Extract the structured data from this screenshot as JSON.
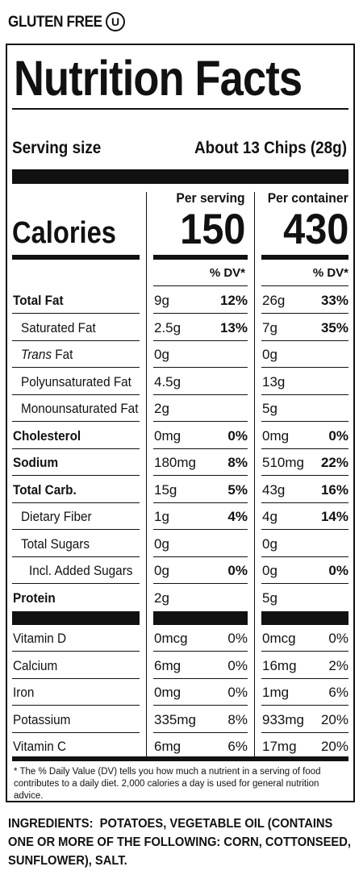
{
  "badges": {
    "gluten_free": "GLUTEN FREE",
    "kosher": "U"
  },
  "title": "Nutrition Facts",
  "serving": {
    "label": "Serving size",
    "value": "About 13 Chips (28g)"
  },
  "columns": {
    "per_serving": "Per serving",
    "per_container": "Per container"
  },
  "calories": {
    "label": "Calories",
    "per_serving": "150",
    "per_container": "430"
  },
  "dv_header": "% DV*",
  "nutrients": [
    {
      "name": "Total Fat",
      "bold": true,
      "indent": 0,
      "s_amt": "9g",
      "s_dv": "12%",
      "c_amt": "26g",
      "c_dv": "33%"
    },
    {
      "name": "Saturated Fat",
      "bold": false,
      "indent": 1,
      "s_amt": "2.5g",
      "s_dv": "13%",
      "c_amt": "7g",
      "c_dv": "35%"
    },
    {
      "name": "Trans Fat",
      "bold": false,
      "indent": 1,
      "italic_prefix": "Trans",
      "rest": " Fat",
      "s_amt": "0g",
      "s_dv": "",
      "c_amt": "0g",
      "c_dv": ""
    },
    {
      "name": "Polyunsaturated Fat",
      "bold": false,
      "indent": 1,
      "s_amt": "4.5g",
      "s_dv": "",
      "c_amt": "13g",
      "c_dv": ""
    },
    {
      "name": "Monounsaturated Fat",
      "bold": false,
      "indent": 1,
      "s_amt": "2g",
      "s_dv": "",
      "c_amt": "5g",
      "c_dv": ""
    },
    {
      "name": "Cholesterol",
      "bold": true,
      "indent": 0,
      "s_amt": "0mg",
      "s_dv": "0%",
      "c_amt": "0mg",
      "c_dv": "0%"
    },
    {
      "name": "Sodium",
      "bold": true,
      "indent": 0,
      "s_amt": "180mg",
      "s_dv": "8%",
      "c_amt": "510mg",
      "c_dv": "22%"
    },
    {
      "name": "Total Carb.",
      "bold": true,
      "indent": 0,
      "s_amt": "15g",
      "s_dv": "5%",
      "c_amt": "43g",
      "c_dv": "16%"
    },
    {
      "name": "Dietary Fiber",
      "bold": false,
      "indent": 1,
      "s_amt": "1g",
      "s_dv": "4%",
      "c_amt": "4g",
      "c_dv": "14%"
    },
    {
      "name": "Total Sugars",
      "bold": false,
      "indent": 1,
      "s_amt": "0g",
      "s_dv": "",
      "c_amt": "0g",
      "c_dv": ""
    },
    {
      "name": "Incl. Added Sugars",
      "bold": false,
      "indent": 2,
      "s_amt": "0g",
      "s_dv": "0%",
      "c_amt": "0g",
      "c_dv": "0%"
    },
    {
      "name": "Protein",
      "bold": true,
      "indent": 0,
      "s_amt": "2g",
      "s_dv": "",
      "c_amt": "5g",
      "c_dv": ""
    }
  ],
  "vitamins": [
    {
      "name": "Vitamin D",
      "s_amt": "0mcg",
      "s_dv": "0%",
      "c_amt": "0mcg",
      "c_dv": "0%"
    },
    {
      "name": "Calcium",
      "s_amt": "6mg",
      "s_dv": "0%",
      "c_amt": "16mg",
      "c_dv": "2%"
    },
    {
      "name": "Iron",
      "s_amt": "0mg",
      "s_dv": "0%",
      "c_amt": "1mg",
      "c_dv": "6%"
    },
    {
      "name": "Potassium",
      "s_amt": "335mg",
      "s_dv": "8%",
      "c_amt": "933mg",
      "c_dv": "20%"
    },
    {
      "name": "Vitamin C",
      "s_amt": "6mg",
      "s_dv": "6%",
      "c_amt": "17mg",
      "c_dv": "20%"
    }
  ],
  "footnote": "* The % Daily Value (DV) tells you how much a nutrient in a serving of food contributes to a daily diet. 2,000 calories a day is used for general nutrition advice.",
  "ingredients": {
    "label": "INGREDIENTS:",
    "text": "POTATOES, VEGETABLE OIL (CONTAINS ONE OR MORE OF THE FOLLOWING: CORN, COTTONSEED, SUNFLOWER), SALT."
  }
}
